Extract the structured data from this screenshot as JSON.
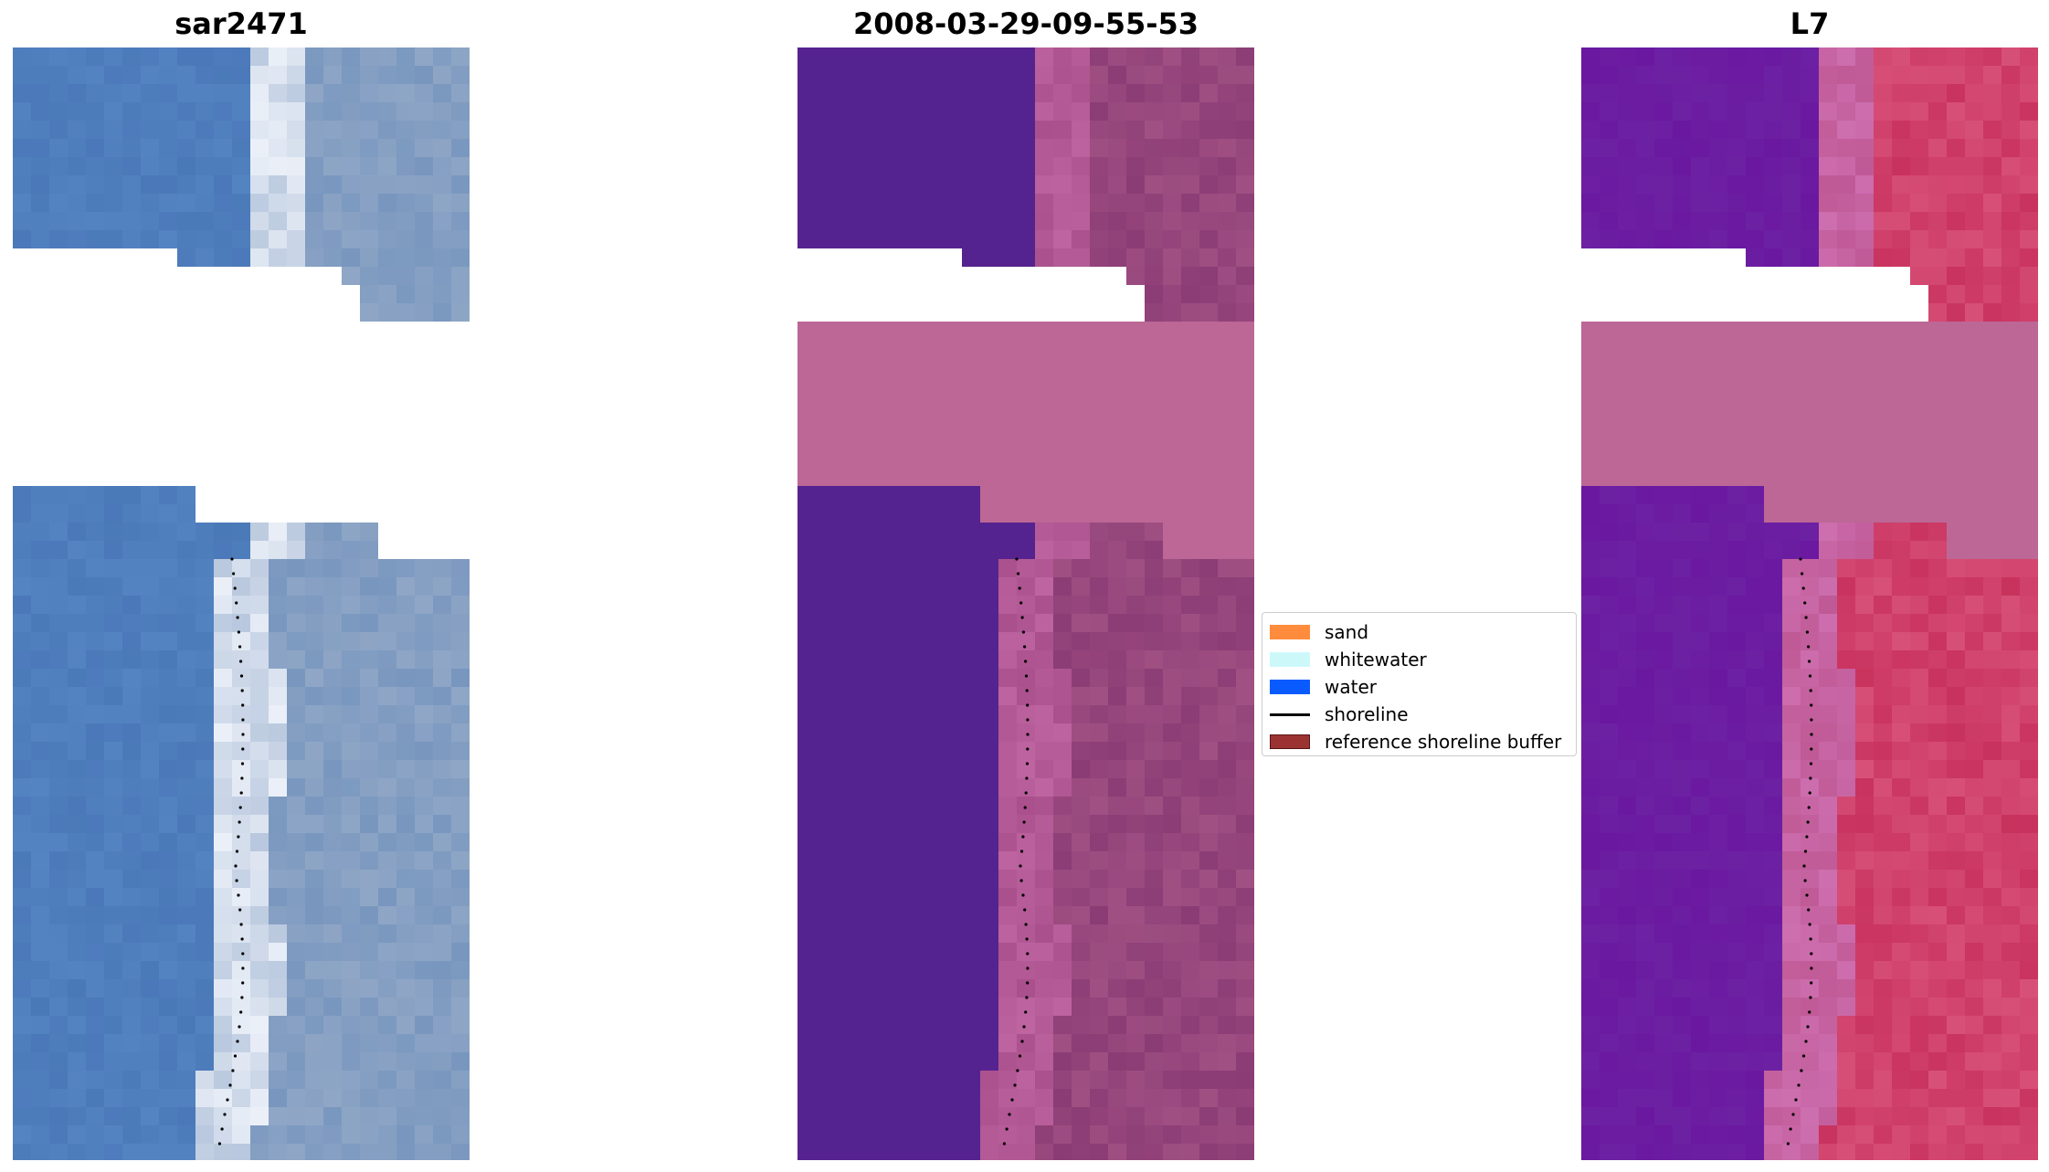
{
  "panels": [
    {
      "id": "rgb",
      "title": "sar2471"
    },
    {
      "id": "classified",
      "title": "2008-03-29-09-55-53"
    },
    {
      "id": "index",
      "title": "L7"
    }
  ],
  "legend": {
    "items": [
      {
        "label": "sand",
        "kind": "patch",
        "color": "#ff8c3c"
      },
      {
        "label": "whitewater",
        "kind": "patch",
        "color": "#ccf8fa"
      },
      {
        "label": "water",
        "kind": "patch",
        "color": "#0a5bff"
      },
      {
        "label": "shoreline",
        "kind": "line",
        "color": "#000000"
      },
      {
        "label": "reference shoreline buffer",
        "kind": "patch",
        "color": "#9b3333"
      }
    ]
  },
  "colors": {
    "rgb_water": "#4a78b8",
    "rgb_shore": "#b9c8de",
    "rgb_land": "#8fa6c6",
    "class_water": "#55238f",
    "class_land": "#8b3c75",
    "nodata_fill": "#bc6796",
    "index_water": "#6a18a0",
    "index_shore": "#c05a96",
    "index_land": "#c8325e"
  }
}
